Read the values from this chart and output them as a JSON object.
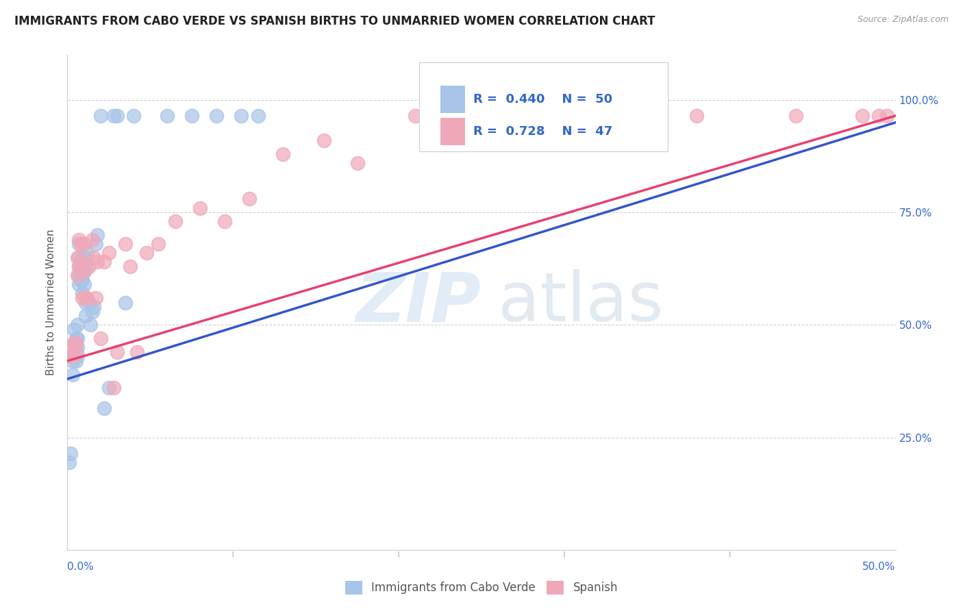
{
  "title": "IMMIGRANTS FROM CABO VERDE VS SPANISH BIRTHS TO UNMARRIED WOMEN CORRELATION CHART",
  "source": "Source: ZipAtlas.com",
  "ylabel": "Births to Unmarried Women",
  "ytick_labels": [
    "25.0%",
    "50.0%",
    "75.0%",
    "100.0%"
  ],
  "ytick_vals": [
    0.25,
    0.5,
    0.75,
    1.0
  ],
  "xlim": [
    0.0,
    0.5
  ],
  "ylim": [
    0.0,
    1.1
  ],
  "blue_color": "#a8c4e8",
  "pink_color": "#f0a8b8",
  "blue_line_color": "#3355cc",
  "pink_line_color": "#e84070",
  "legend_text_color": "#3366cc",
  "blue_scatter_x": [
    0.001,
    0.002,
    0.003,
    0.003,
    0.004,
    0.004,
    0.004,
    0.005,
    0.005,
    0.005,
    0.006,
    0.006,
    0.006,
    0.006,
    0.007,
    0.007,
    0.007,
    0.007,
    0.007,
    0.008,
    0.008,
    0.008,
    0.009,
    0.009,
    0.009,
    0.01,
    0.01,
    0.01,
    0.011,
    0.011,
    0.012,
    0.012,
    0.013,
    0.014,
    0.015,
    0.016,
    0.017,
    0.018,
    0.02,
    0.022,
    0.025,
    0.028,
    0.03,
    0.035,
    0.04,
    0.06,
    0.075,
    0.09,
    0.105,
    0.115
  ],
  "blue_scatter_y": [
    0.195,
    0.215,
    0.39,
    0.42,
    0.43,
    0.46,
    0.49,
    0.42,
    0.44,
    0.47,
    0.43,
    0.45,
    0.47,
    0.5,
    0.59,
    0.61,
    0.63,
    0.65,
    0.68,
    0.6,
    0.62,
    0.64,
    0.57,
    0.6,
    0.63,
    0.59,
    0.62,
    0.65,
    0.52,
    0.55,
    0.63,
    0.66,
    0.55,
    0.5,
    0.53,
    0.54,
    0.68,
    0.7,
    0.965,
    0.315,
    0.36,
    0.965,
    0.965,
    0.55,
    0.965,
    0.965,
    0.965,
    0.965,
    0.965,
    0.965
  ],
  "pink_scatter_x": [
    0.001,
    0.002,
    0.003,
    0.004,
    0.005,
    0.005,
    0.006,
    0.006,
    0.007,
    0.007,
    0.008,
    0.008,
    0.009,
    0.01,
    0.01,
    0.011,
    0.012,
    0.013,
    0.015,
    0.016,
    0.017,
    0.018,
    0.02,
    0.022,
    0.025,
    0.028,
    0.03,
    0.035,
    0.038,
    0.042,
    0.048,
    0.055,
    0.065,
    0.08,
    0.095,
    0.11,
    0.13,
    0.155,
    0.175,
    0.21,
    0.25,
    0.31,
    0.38,
    0.44,
    0.48,
    0.49,
    0.495
  ],
  "pink_scatter_y": [
    0.43,
    0.45,
    0.43,
    0.46,
    0.44,
    0.46,
    0.61,
    0.65,
    0.63,
    0.69,
    0.64,
    0.68,
    0.56,
    0.62,
    0.68,
    0.56,
    0.56,
    0.63,
    0.69,
    0.65,
    0.56,
    0.64,
    0.47,
    0.64,
    0.66,
    0.36,
    0.44,
    0.68,
    0.63,
    0.44,
    0.66,
    0.68,
    0.73,
    0.76,
    0.73,
    0.78,
    0.88,
    0.91,
    0.86,
    0.965,
    0.965,
    0.965,
    0.965,
    0.965,
    0.965,
    0.965,
    0.965
  ],
  "blue_line_x": [
    0.0,
    0.5
  ],
  "blue_line_y": [
    0.38,
    0.95
  ],
  "pink_line_x": [
    0.0,
    0.5
  ],
  "pink_line_y": [
    0.42,
    0.965
  ],
  "bottom_legend": [
    "Immigrants from Cabo Verde",
    "Spanish"
  ]
}
